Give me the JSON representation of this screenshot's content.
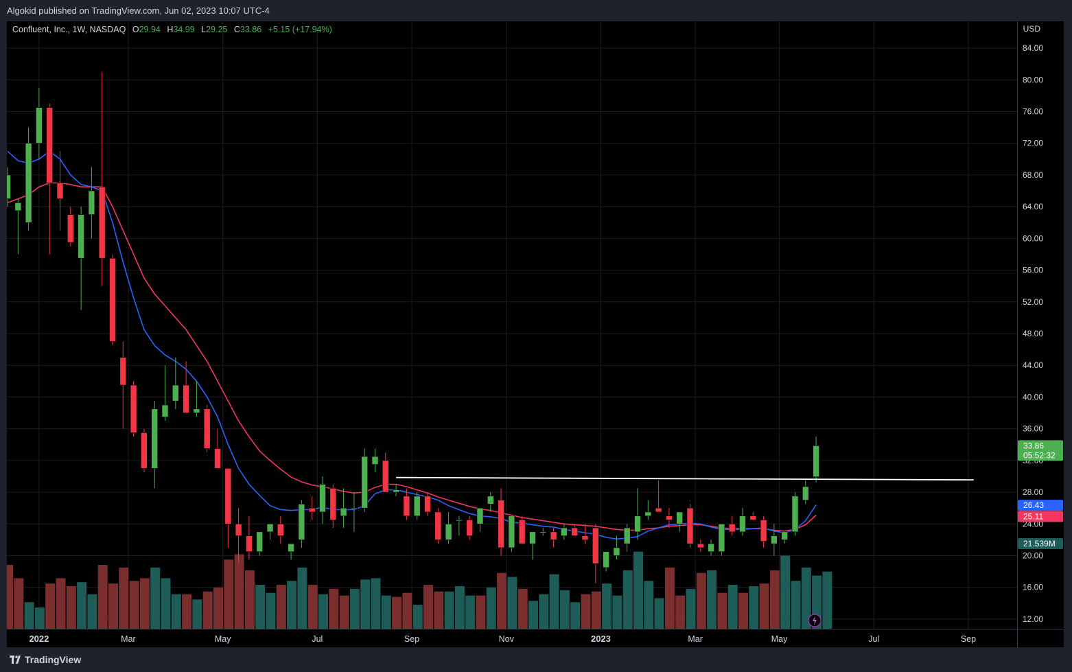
{
  "publisher_line": "Algokid published on TradingView.com, Jun 02, 2023 10:07 UTC-4",
  "legend": {
    "symbol": "Confluent, Inc., 1W, NASDAQ",
    "o_label": "O",
    "o_value": "29.94",
    "h_label": "H",
    "h_value": "34.99",
    "l_label": "L",
    "l_value": "29.25",
    "c_label": "C",
    "c_value": "33.86",
    "change": "+5.15 (+17.94%)"
  },
  "currency": "USD",
  "footer": {
    "brand": "TradingView",
    "icon": "tradingview-logo-icon"
  },
  "price_labels": {
    "last_price": "33.86",
    "countdown": "05:52:32",
    "ema_fast": "26.43",
    "ema_slow": "25.11",
    "volume": "21.539M"
  },
  "colors": {
    "background": "#000000",
    "up": "#4caf50",
    "down": "#f23645",
    "vol_up": "#1d5c57",
    "vol_down": "#7a2e2e",
    "ema_fast": "#2962ff",
    "ema_slow": "#f23660",
    "hline": "#ffffff",
    "grid": "#1c1c1c",
    "last_price_label": "#4caf50",
    "volume_label": "#1d5c57"
  },
  "chart_data": {
    "type": "candlestick",
    "symbol": "Confluent, Inc., 1W, NASDAQ",
    "currency": "USD",
    "y_ticks": [
      "84.00",
      "80.00",
      "76.00",
      "72.00",
      "68.00",
      "64.00",
      "60.00",
      "56.00",
      "52.00",
      "48.00",
      "44.00",
      "40.00",
      "36.00",
      "32.00",
      "28.00",
      "24.00",
      "20.00",
      "16.00",
      "12.00"
    ],
    "ylim": [
      10,
      87
    ],
    "x_ticks": [
      {
        "label": "2022",
        "week": 3
      },
      {
        "label": "Mar",
        "week": 11.5
      },
      {
        "label": "May",
        "week": 20.5
      },
      {
        "label": "Jul",
        "week": 29.5
      },
      {
        "label": "Sep",
        "week": 38.5
      },
      {
        "label": "Nov",
        "week": 47.5
      },
      {
        "label": "2023",
        "week": 56.5
      },
      {
        "label": "Mar",
        "week": 65.5
      },
      {
        "label": "May",
        "week": 73.5
      },
      {
        "label": "Jul",
        "week": 82.5
      },
      {
        "label": "Sep",
        "week": 91.5
      }
    ],
    "x_range_weeks": [
      0,
      98
    ],
    "candles": [
      {
        "o": 65,
        "h": 69,
        "l": 64,
        "c": 68
      },
      {
        "o": 63.5,
        "h": 65,
        "l": 58,
        "c": 64.5
      },
      {
        "o": 62,
        "h": 74,
        "l": 61,
        "c": 72
      },
      {
        "o": 72,
        "h": 79,
        "l": 70,
        "c": 76.5
      },
      {
        "o": 76.5,
        "h": 77,
        "l": 58,
        "c": 67
      },
      {
        "o": 67,
        "h": 71,
        "l": 61,
        "c": 65
      },
      {
        "o": 63,
        "h": 64,
        "l": 59,
        "c": 59.5
      },
      {
        "o": 57.5,
        "h": 64,
        "l": 51,
        "c": 63
      },
      {
        "o": 63,
        "h": 69,
        "l": 60,
        "c": 66
      },
      {
        "o": 66.5,
        "h": 81,
        "l": 54,
        "c": 57.5
      },
      {
        "o": 57.5,
        "h": 58,
        "l": 46.5,
        "c": 47
      },
      {
        "o": 45,
        "h": 47,
        "l": 36,
        "c": 41.5
      },
      {
        "o": 41.5,
        "h": 42,
        "l": 35,
        "c": 35.5
      },
      {
        "o": 35.5,
        "h": 36,
        "l": 30.5,
        "c": 31
      },
      {
        "o": 31,
        "h": 39.5,
        "l": 28.5,
        "c": 38.5
      },
      {
        "o": 37.5,
        "h": 44,
        "l": 37,
        "c": 39
      },
      {
        "o": 39.5,
        "h": 45,
        "l": 38.5,
        "c": 41.5
      },
      {
        "o": 41.5,
        "h": 44.5,
        "l": 38,
        "c": 38
      },
      {
        "o": 38,
        "h": 42,
        "l": 37.5,
        "c": 38.5
      },
      {
        "o": 38.5,
        "h": 39,
        "l": 33,
        "c": 33.5
      },
      {
        "o": 33.5,
        "h": 36,
        "l": 31,
        "c": 31
      },
      {
        "o": 31,
        "h": 31,
        "l": 21,
        "c": 24
      },
      {
        "o": 24,
        "h": 26,
        "l": 19,
        "c": 22.5
      },
      {
        "o": 22.5,
        "h": 25,
        "l": 19.5,
        "c": 20.5
      },
      {
        "o": 20.5,
        "h": 23,
        "l": 20,
        "c": 23
      },
      {
        "o": 23,
        "h": 24,
        "l": 22,
        "c": 24
      },
      {
        "o": 24,
        "h": 25,
        "l": 21.5,
        "c": 22.5
      },
      {
        "o": 20.5,
        "h": 21.5,
        "l": 19.5,
        "c": 21.5
      },
      {
        "o": 22,
        "h": 27,
        "l": 21,
        "c": 26.5
      },
      {
        "o": 26,
        "h": 27.5,
        "l": 24.5,
        "c": 25.5
      },
      {
        "o": 25.5,
        "h": 30,
        "l": 24,
        "c": 29
      },
      {
        "o": 28.5,
        "h": 29,
        "l": 23.5,
        "c": 24.5
      },
      {
        "o": 25,
        "h": 28.5,
        "l": 23.5,
        "c": 26
      },
      {
        "o": 26,
        "h": 28,
        "l": 23,
        "c": 26
      },
      {
        "o": 26,
        "h": 33.5,
        "l": 25.5,
        "c": 32.5
      },
      {
        "o": 31.5,
        "h": 33.5,
        "l": 30.5,
        "c": 32.5
      },
      {
        "o": 32,
        "h": 33,
        "l": 28,
        "c": 28
      },
      {
        "o": 28,
        "h": 29,
        "l": 27.5,
        "c": 28.3
      },
      {
        "o": 27.5,
        "h": 28.5,
        "l": 24.5,
        "c": 25
      },
      {
        "o": 25,
        "h": 28,
        "l": 24.5,
        "c": 27.5
      },
      {
        "o": 27.5,
        "h": 28,
        "l": 25,
        "c": 25.5
      },
      {
        "o": 25.5,
        "h": 26,
        "l": 21.5,
        "c": 22
      },
      {
        "o": 22,
        "h": 25.5,
        "l": 21.5,
        "c": 24
      },
      {
        "o": 24.5,
        "h": 25,
        "l": 22.5,
        "c": 24.5
      },
      {
        "o": 24.5,
        "h": 25,
        "l": 22,
        "c": 22.5
      },
      {
        "o": 24,
        "h": 26,
        "l": 23,
        "c": 26
      },
      {
        "o": 26.5,
        "h": 28,
        "l": 25.5,
        "c": 27.5
      },
      {
        "o": 27,
        "h": 28.5,
        "l": 20,
        "c": 21
      },
      {
        "o": 21,
        "h": 25,
        "l": 20.5,
        "c": 25
      },
      {
        "o": 24.5,
        "h": 25,
        "l": 21.5,
        "c": 21.5
      },
      {
        "o": 21.5,
        "h": 23,
        "l": 19.5,
        "c": 23
      },
      {
        "o": 23,
        "h": 23.5,
        "l": 22.5,
        "c": 23
      },
      {
        "o": 23,
        "h": 23.5,
        "l": 21,
        "c": 22
      },
      {
        "o": 22.5,
        "h": 24,
        "l": 22,
        "c": 23.5
      },
      {
        "o": 23.5,
        "h": 24,
        "l": 22.5,
        "c": 22.5
      },
      {
        "o": 22.5,
        "h": 24,
        "l": 21.5,
        "c": 22
      },
      {
        "o": 23.5,
        "h": 24,
        "l": 16.5,
        "c": 19
      },
      {
        "o": 18.5,
        "h": 20.5,
        "l": 18,
        "c": 20.5
      },
      {
        "o": 20,
        "h": 22.5,
        "l": 19.5,
        "c": 21
      },
      {
        "o": 21.5,
        "h": 24,
        "l": 20.5,
        "c": 23.5
      },
      {
        "o": 23,
        "h": 28.5,
        "l": 22,
        "c": 25
      },
      {
        "o": 25,
        "h": 27,
        "l": 24.5,
        "c": 25.5
      },
      {
        "o": 26,
        "h": 29.5,
        "l": 25.5,
        "c": 25.5
      },
      {
        "o": 25,
        "h": 26,
        "l": 23.5,
        "c": 24.5
      },
      {
        "o": 24,
        "h": 25,
        "l": 23,
        "c": 25.5
      },
      {
        "o": 26,
        "h": 26.5,
        "l": 21,
        "c": 21.5
      },
      {
        "o": 21.5,
        "h": 22,
        "l": 20.5,
        "c": 21
      },
      {
        "o": 20.5,
        "h": 22,
        "l": 20,
        "c": 21.5
      },
      {
        "o": 20.5,
        "h": 24,
        "l": 20,
        "c": 24
      },
      {
        "o": 24,
        "h": 25,
        "l": 22.5,
        "c": 23
      },
      {
        "o": 23,
        "h": 26,
        "l": 22.5,
        "c": 25
      },
      {
        "o": 25,
        "h": 25.5,
        "l": 24.5,
        "c": 24.5
      },
      {
        "o": 24.5,
        "h": 25,
        "l": 21,
        "c": 21.8
      },
      {
        "o": 21.5,
        "h": 24,
        "l": 20,
        "c": 22.5
      },
      {
        "o": 22,
        "h": 23,
        "l": 21.5,
        "c": 23
      },
      {
        "o": 23,
        "h": 28,
        "l": 22.5,
        "c": 27.5
      },
      {
        "o": 27,
        "h": 29.5,
        "l": 26.5,
        "c": 28.7
      },
      {
        "o": 29.94,
        "h": 34.99,
        "l": 29.25,
        "c": 33.86
      }
    ],
    "volume": [
      {
        "v": 24,
        "up": false
      },
      {
        "v": 19,
        "up": false
      },
      {
        "v": 10,
        "up": true
      },
      {
        "v": 8,
        "up": true
      },
      {
        "v": 17,
        "up": false
      },
      {
        "v": 19,
        "up": false
      },
      {
        "v": 16,
        "up": false
      },
      {
        "v": 17.5,
        "up": true
      },
      {
        "v": 13,
        "up": true
      },
      {
        "v": 24,
        "up": false
      },
      {
        "v": 17,
        "up": false
      },
      {
        "v": 23,
        "up": false
      },
      {
        "v": 18,
        "up": false
      },
      {
        "v": 19,
        "up": false
      },
      {
        "v": 23,
        "up": true
      },
      {
        "v": 19,
        "up": true
      },
      {
        "v": 13,
        "up": true
      },
      {
        "v": 13,
        "up": false
      },
      {
        "v": 11,
        "up": true
      },
      {
        "v": 14,
        "up": false
      },
      {
        "v": 15.5,
        "up": false
      },
      {
        "v": 26,
        "up": false
      },
      {
        "v": 28,
        "up": false
      },
      {
        "v": 22,
        "up": false
      },
      {
        "v": 16.5,
        "up": true
      },
      {
        "v": 13.5,
        "up": true
      },
      {
        "v": 16.5,
        "up": false
      },
      {
        "v": 18,
        "up": true
      },
      {
        "v": 23,
        "up": true
      },
      {
        "v": 16.5,
        "up": false
      },
      {
        "v": 13,
        "up": true
      },
      {
        "v": 15,
        "up": false
      },
      {
        "v": 12.5,
        "up": false
      },
      {
        "v": 15,
        "up": true
      },
      {
        "v": 18.5,
        "up": true
      },
      {
        "v": 19,
        "up": true
      },
      {
        "v": 12.5,
        "up": true
      },
      {
        "v": 12,
        "up": false
      },
      {
        "v": 13.5,
        "up": false
      },
      {
        "v": 9,
        "up": true
      },
      {
        "v": 16.5,
        "up": false
      },
      {
        "v": 14,
        "up": false
      },
      {
        "v": 14,
        "up": true
      },
      {
        "v": 16,
        "up": true
      },
      {
        "v": 12.5,
        "up": true
      },
      {
        "v": 12.5,
        "up": false
      },
      {
        "v": 15.5,
        "up": true
      },
      {
        "v": 21,
        "up": false
      },
      {
        "v": 19.5,
        "up": true
      },
      {
        "v": 15,
        "up": false
      },
      {
        "v": 10.5,
        "up": true
      },
      {
        "v": 13,
        "up": true
      },
      {
        "v": 20.5,
        "up": true
      },
      {
        "v": 14.5,
        "up": true
      },
      {
        "v": 10,
        "up": true
      },
      {
        "v": 13,
        "up": false
      },
      {
        "v": 14,
        "up": false
      },
      {
        "v": 17,
        "up": true
      },
      {
        "v": 12.5,
        "up": true
      },
      {
        "v": 22,
        "up": true
      },
      {
        "v": 29,
        "up": true
      },
      {
        "v": 18,
        "up": true
      },
      {
        "v": 11.5,
        "up": true
      },
      {
        "v": 23,
        "up": false
      },
      {
        "v": 12.5,
        "up": false
      },
      {
        "v": 15,
        "up": true
      },
      {
        "v": 21,
        "up": false
      },
      {
        "v": 22,
        "up": true
      },
      {
        "v": 13.5,
        "up": false
      },
      {
        "v": 16.5,
        "up": true
      },
      {
        "v": 13.5,
        "up": false
      },
      {
        "v": 16,
        "up": true
      },
      {
        "v": 17,
        "up": false
      },
      {
        "v": 22,
        "up": false
      },
      {
        "v": 27.5,
        "up": true
      },
      {
        "v": 18,
        "up": true
      },
      {
        "v": 23,
        "up": true
      },
      {
        "v": 20,
        "up": true
      },
      {
        "v": 21.5,
        "up": true
      }
    ],
    "volume_scale_max": 40,
    "ema_fast": [
      71,
      69.8,
      69.5,
      70,
      71,
      70,
      68,
      66.8,
      66.5,
      66,
      62,
      57,
      52.5,
      48.5,
      46.5,
      45.3,
      44.5,
      43.5,
      42,
      40,
      37.5,
      34,
      31,
      29,
      27.6,
      26.3,
      25.8,
      25.7,
      25.8,
      25.8,
      26.1,
      25.8,
      25.8,
      25.8,
      26.3,
      27.8,
      28.3,
      28.3,
      28,
      27.7,
      27.4,
      27,
      26.3,
      25.8,
      25.3,
      25,
      24.9,
      24.7,
      24.2,
      24.1,
      23.9,
      23.7,
      23.6,
      23.3,
      23.1,
      22.9,
      22.7,
      22.3,
      22.1,
      22.2,
      22.4,
      23.1,
      23.5,
      23.9,
      24,
      24.1,
      24,
      23.6,
      23.3,
      23.3,
      23.3,
      23.4,
      23.5,
      23.1,
      22.9,
      23.3,
      24.4,
      26.4
    ],
    "ema_slow": [
      64.5,
      65,
      65.5,
      66.5,
      67,
      67,
      66.8,
      66.5,
      66.5,
      66.5,
      64,
      61,
      58,
      55,
      53,
      51.5,
      50,
      48.5,
      46.5,
      44.5,
      42,
      39.5,
      37,
      35,
      33.2,
      32,
      30.9,
      29.9,
      29.3,
      28.9,
      28.7,
      28.4,
      28.1,
      27.9,
      28,
      28.6,
      29,
      29,
      28.7,
      28.3,
      27.9,
      27.4,
      27,
      26.6,
      26.2,
      25.9,
      25.7,
      25.4,
      25.1,
      24.8,
      24.6,
      24.4,
      24.2,
      24,
      23.9,
      23.8,
      23.7,
      23.5,
      23.3,
      23.2,
      23.2,
      23.4,
      23.5,
      23.7,
      23.8,
      23.9,
      23.9,
      23.7,
      23.5,
      23.4,
      23.4,
      23.4,
      23.4,
      23.2,
      23.1,
      23.3,
      23.9,
      25.1
    ],
    "hline": {
      "price": 29.85,
      "from_week": 37,
      "to_week": 92,
      "end_price": 29.55
    },
    "last_price": 33.86,
    "ema_fast_last": 26.43,
    "ema_slow_last": 25.11,
    "volume_last": "21.539M"
  }
}
